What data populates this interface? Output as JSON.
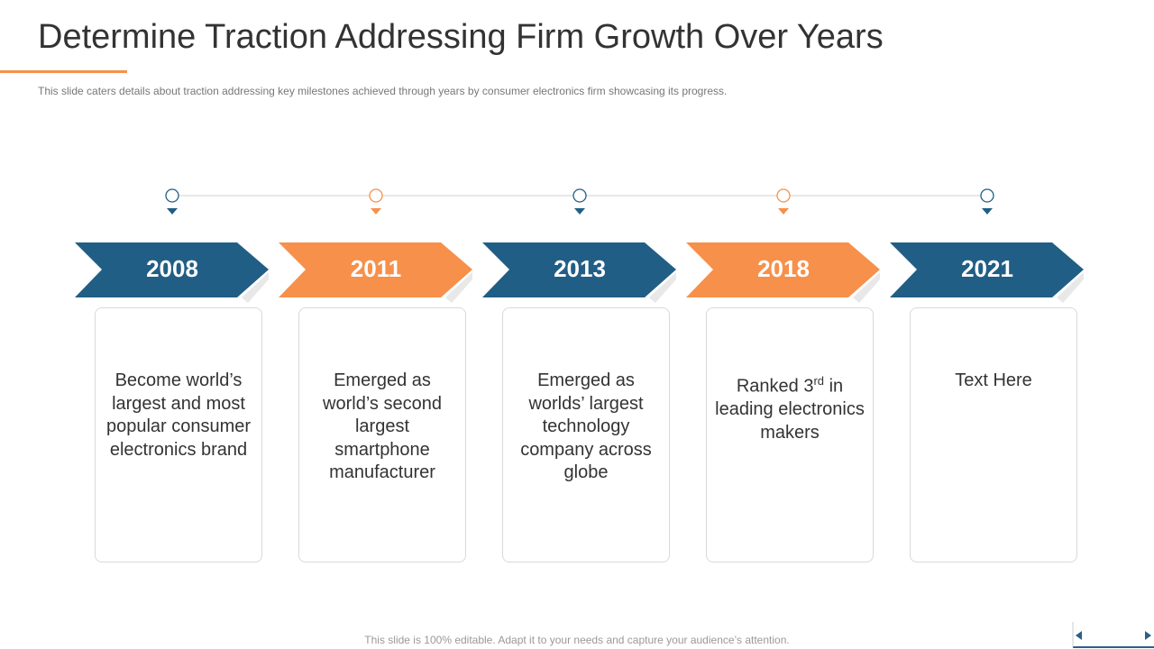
{
  "header": {
    "title": "Determine Traction Addressing Firm Growth Over Years",
    "subtitle": "This slide caters details about traction addressing key milestones achieved through years by consumer electronics firm showcasing its progress."
  },
  "timeline": {
    "items": [
      {
        "year": "2008",
        "text": "Become world’s largest and most popular consumer electronics brand"
      },
      {
        "year": "2011",
        "text": "Emerged as world’s second largest smartphone manufacturer"
      },
      {
        "year": "2013",
        "text": "Emerged as worlds’ largest technology company across globe"
      },
      {
        "year": "2018",
        "text": "Ranked 3",
        "sup": "rd",
        "after": " in leading electronics makers"
      },
      {
        "year": "2021",
        "text": "Text Here"
      }
    ]
  },
  "footer": "This slide is 100% editable. Adapt it to your needs and capture your audience’s attention."
}
